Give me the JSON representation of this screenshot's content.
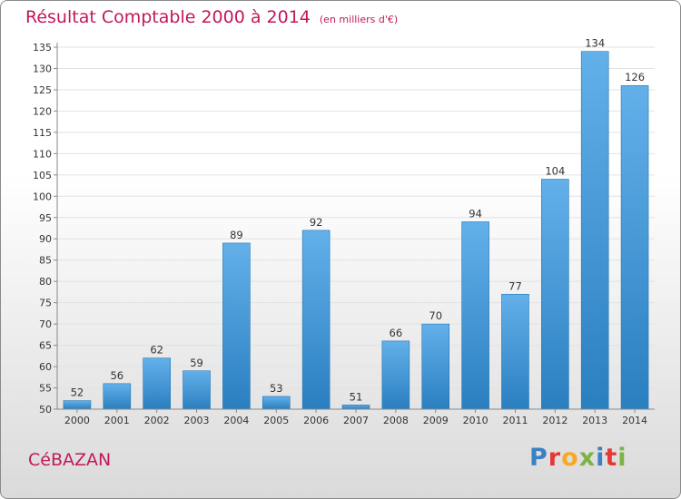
{
  "title": "Résultat Comptable 2000 à 2014",
  "unit": "(en milliers d'€)",
  "commune": "CéBAZAN",
  "logo": {
    "letters": [
      {
        "ch": "P",
        "color": "#3b82c4"
      },
      {
        "ch": "r",
        "color": "#e53935"
      },
      {
        "ch": "o",
        "color": "#f9a825"
      },
      {
        "ch": "x",
        "color": "#7cb342"
      },
      {
        "ch": "i",
        "color": "#3b82c4"
      },
      {
        "ch": "t",
        "color": "#e53935"
      },
      {
        "ch": "i",
        "color": "#7cb342"
      }
    ]
  },
  "colors": {
    "title": "#c2185b",
    "bar_light": "#63b0ea",
    "bar_dark": "#2a7fc0"
  },
  "chart_data": {
    "type": "bar",
    "categories": [
      "2000",
      "2001",
      "2002",
      "2003",
      "2004",
      "2005",
      "2006",
      "2007",
      "2008",
      "2009",
      "2010",
      "2011",
      "2012",
      "2013",
      "2014"
    ],
    "values": [
      52,
      56,
      62,
      59,
      89,
      53,
      92,
      51,
      66,
      70,
      94,
      77,
      104,
      134,
      126
    ],
    "ylim": [
      50,
      135
    ],
    "yticks": [
      50,
      55,
      60,
      65,
      70,
      75,
      80,
      85,
      90,
      95,
      100,
      105,
      110,
      115,
      120,
      125,
      130,
      135
    ],
    "grid": true,
    "xlabel": "",
    "ylabel": ""
  }
}
